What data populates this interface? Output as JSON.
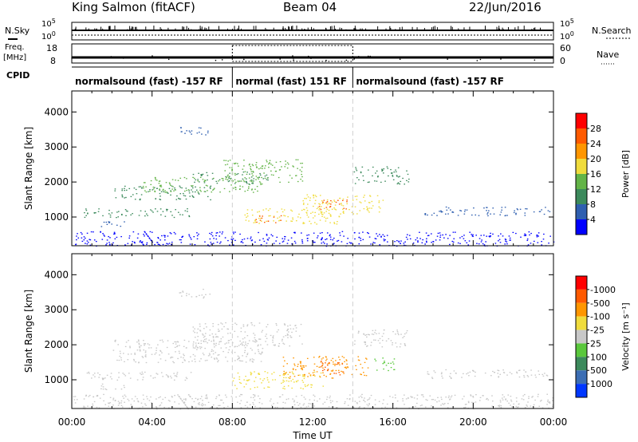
{
  "header": {
    "station": "King Salmon (fitACF)",
    "beam": "Beam 04",
    "date": "22/Jun/2016"
  },
  "strip_labels": {
    "nsky": "N.Sky",
    "freq_1": "Freq.",
    "freq_2": "[MHz]",
    "cpid": "CPID",
    "nsearch": "N.Search",
    "nave": "Nave",
    "nsky_top": "10^5",
    "nsky_bottom": "10^0",
    "nsearch_top": "10^5",
    "nsearch_bottom": "10^0",
    "freq_top": "18",
    "freq_bottom": "8",
    "nave_top": "60",
    "nave_bottom": "0"
  },
  "cpid_segments": [
    {
      "label": "normalsound (fast) -157 RF",
      "start_h": 0,
      "end_h": 8
    },
    {
      "label": "normal (fast) 151 RF",
      "start_h": 8,
      "end_h": 14
    },
    {
      "label": "normalsound (fast) -157 RF",
      "start_h": 14,
      "end_h": 24
    }
  ],
  "chart_data": [
    {
      "type": "heatmap",
      "name": "power",
      "ylabel": "Slant Range [km]",
      "xlabel": "Time UT",
      "xlim": [
        0,
        24
      ],
      "ylim": [
        180,
        4600
      ],
      "x_ticks": [
        "00:00",
        "04:00",
        "08:00",
        "12:00",
        "16:00",
        "20:00",
        "00:00"
      ],
      "y_ticks": [
        1000,
        2000,
        3000,
        4000
      ],
      "colorbar": {
        "label": "Power [dB]",
        "ticks": [
          "4",
          "8",
          "12",
          "16",
          "20",
          "24",
          "28"
        ],
        "colors": [
          "#0000ff",
          "#2f5fb0",
          "#3c8a5c",
          "#63b447",
          "#f0dc3c",
          "#ff9600",
          "#ff5a00",
          "#ff0000"
        ]
      },
      "regions": [
        {
          "t0": 0.6,
          "t1": 6.0,
          "r0": 1000,
          "r1": 1250,
          "level": 2
        },
        {
          "t0": 1.4,
          "t1": 2.6,
          "r0": 700,
          "r1": 900,
          "level": 1
        },
        {
          "t0": 5.3,
          "t1": 6.9,
          "r0": 3350,
          "r1": 3600,
          "level": 1
        },
        {
          "t0": 2.0,
          "t1": 7.0,
          "r0": 1500,
          "r1": 1900,
          "level": 2
        },
        {
          "t0": 3.5,
          "t1": 9.5,
          "r0": 1700,
          "r1": 2150,
          "level": 3
        },
        {
          "t0": 6.0,
          "t1": 9.8,
          "r0": 1950,
          "r1": 2300,
          "level": 2
        },
        {
          "t0": 7.5,
          "t1": 11.5,
          "r0": 2000,
          "r1": 2650,
          "level": 3
        },
        {
          "t0": 8.5,
          "t1": 13.5,
          "r0": 800,
          "r1": 1250,
          "level": 4
        },
        {
          "t0": 9.0,
          "t1": 10.5,
          "r0": 850,
          "r1": 1050,
          "level": 6
        },
        {
          "t0": 11.5,
          "t1": 15.5,
          "r0": 1100,
          "r1": 1650,
          "level": 4
        },
        {
          "t0": 12.3,
          "t1": 13.7,
          "r0": 1200,
          "r1": 1500,
          "level": 6
        },
        {
          "t0": 14.0,
          "t1": 16.8,
          "r0": 1950,
          "r1": 2450,
          "level": 2
        },
        {
          "t0": 17.5,
          "t1": 23.8,
          "r0": 1050,
          "r1": 1300,
          "level": 1
        },
        {
          "t0": 0.0,
          "t1": 24.0,
          "r0": 180,
          "r1": 600,
          "level": 0
        }
      ]
    },
    {
      "type": "heatmap",
      "name": "velocity",
      "ylabel": "Slant Range [km]",
      "xlabel": "Time UT",
      "xlim": [
        0,
        24
      ],
      "ylim": [
        180,
        4600
      ],
      "x_ticks": [
        "00:00",
        "04:00",
        "08:00",
        "12:00",
        "16:00",
        "20:00",
        "00:00"
      ],
      "y_ticks": [
        1000,
        2000,
        3000,
        4000
      ],
      "colorbar": {
        "label": "Velocity [m s⁻¹]",
        "ticks": [
          "1000",
          "500",
          "100",
          "25",
          "-25",
          "-100",
          "-500",
          "-1000"
        ],
        "colors": [
          "#0037ff",
          "#3c6eb4",
          "#3c8a5c",
          "#5ac83c",
          "#c8c8c8",
          "#f0dc3c",
          "#ff9600",
          "#ff5a00",
          "#ff0000"
        ]
      },
      "regions": [
        {
          "t0": 0.6,
          "t1": 6.0,
          "r0": 1000,
          "r1": 1250,
          "level": 4
        },
        {
          "t0": 1.4,
          "t1": 2.6,
          "r0": 700,
          "r1": 900,
          "level": 4
        },
        {
          "t0": 5.3,
          "t1": 6.9,
          "r0": 3350,
          "r1": 3600,
          "level": 4
        },
        {
          "t0": 2.0,
          "t1": 9.5,
          "r0": 1500,
          "r1": 2150,
          "level": 4
        },
        {
          "t0": 6.0,
          "t1": 11.5,
          "r0": 1950,
          "r1": 2650,
          "level": 4
        },
        {
          "t0": 8.0,
          "t1": 12.5,
          "r0": 750,
          "r1": 1250,
          "level": 5
        },
        {
          "t0": 10.5,
          "t1": 14.8,
          "r0": 1050,
          "r1": 1700,
          "level": 6
        },
        {
          "t0": 12.3,
          "t1": 13.5,
          "r0": 1150,
          "r1": 1550,
          "level": 7
        },
        {
          "t0": 15.0,
          "t1": 16.1,
          "r0": 1250,
          "r1": 1650,
          "level": 3
        },
        {
          "t0": 14.0,
          "t1": 16.8,
          "r0": 1950,
          "r1": 2450,
          "level": 4
        },
        {
          "t0": 17.5,
          "t1": 23.8,
          "r0": 1050,
          "r1": 1300,
          "level": 4
        },
        {
          "t0": 0.0,
          "t1": 24.0,
          "r0": 180,
          "r1": 600,
          "level": 4
        }
      ]
    }
  ],
  "scan_boundaries_h": [
    8,
    14
  ]
}
